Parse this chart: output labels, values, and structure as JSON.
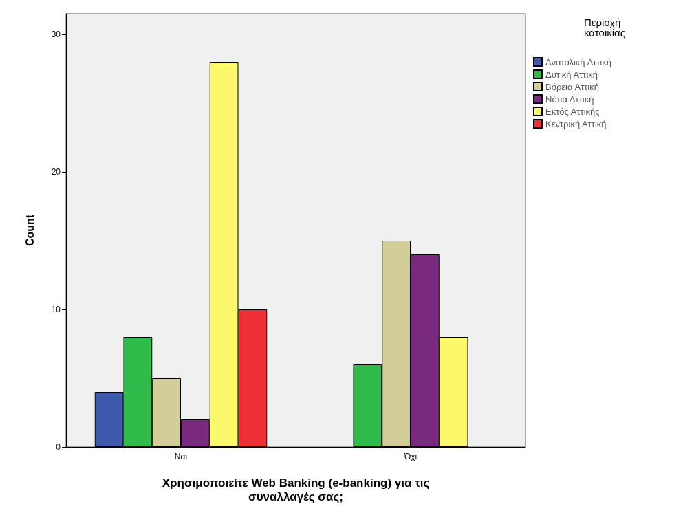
{
  "chart_data": {
    "type": "bar",
    "xlabel": "Χρησιμοποιείτε Web Banking (e-banking) για τις\nσυναλλαγές σας;",
    "ylabel": "Count",
    "legend_title": "Περιοχή\nκατοικίας",
    "categories": [
      "Ναι",
      "Όχι"
    ],
    "series": [
      {
        "name": "Ανατολική Αττική",
        "color": "#3e58ac",
        "values": [
          4,
          null
        ]
      },
      {
        "name": "Δυτική Αττική",
        "color": "#2ebb4a",
        "values": [
          8,
          6
        ]
      },
      {
        "name": "Βόρεια Αττική",
        "color": "#d3ce97",
        "values": [
          5,
          15
        ]
      },
      {
        "name": "Νότια Αττική",
        "color": "#792a7f",
        "values": [
          2,
          14
        ]
      },
      {
        "name": "Εκτός Αττικής",
        "color": "#fbf86c",
        "values": [
          28,
          8
        ]
      },
      {
        "name": "Κεντρική Αττική",
        "color": "#ef2f36",
        "values": [
          10,
          null
        ]
      }
    ],
    "ylim": [
      0,
      31.5
    ],
    "yticks": [
      0,
      10,
      20,
      30
    ],
    "grid": false,
    "legend": "right"
  }
}
